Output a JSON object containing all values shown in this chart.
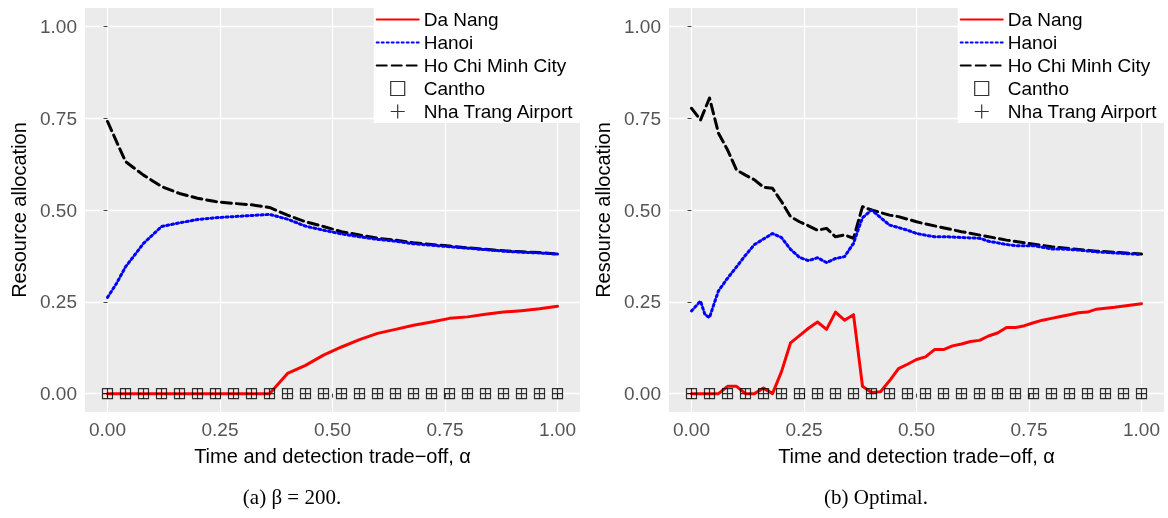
{
  "chart_data": [
    {
      "type": "line",
      "title": "(a) β = 200.",
      "xlabel": "Time and detection trade−off, α",
      "ylabel": "Resource allocation",
      "xlim": [
        -0.05,
        1.05
      ],
      "ylim": [
        -0.05,
        1.05
      ],
      "xticks": [
        {
          "value": 0,
          "label": "0.00"
        },
        {
          "value": 0.25,
          "label": "0.25"
        },
        {
          "value": 0.5,
          "label": "0.50"
        },
        {
          "value": 0.75,
          "label": "0.75"
        },
        {
          "value": 1,
          "label": "1.00"
        }
      ],
      "yticks": [
        {
          "value": 0,
          "label": "0.00"
        },
        {
          "value": 0.25,
          "label": "0.25"
        },
        {
          "value": 0.5,
          "label": "0.50"
        },
        {
          "value": 0.75,
          "label": "0.75"
        },
        {
          "value": 1,
          "label": "1.00"
        }
      ],
      "grid": true,
      "legend": "top right",
      "series": [
        {
          "name": "Da Nang",
          "type": "line",
          "line_style": "solid",
          "color": "#ff0000",
          "x": [
            0,
            0.04,
            0.08,
            0.12,
            0.16,
            0.2,
            0.24,
            0.28,
            0.32,
            0.36,
            0.4,
            0.44,
            0.48,
            0.52,
            0.56,
            0.6,
            0.64,
            0.68,
            0.72,
            0.76,
            0.8,
            0.84,
            0.88,
            0.92,
            0.96,
            1
          ],
          "values": [
            0,
            0,
            0,
            0,
            0,
            0,
            0,
            0,
            0,
            0,
            0.055,
            0.077,
            0.105,
            0.127,
            0.147,
            0.164,
            0.175,
            0.186,
            0.195,
            0.205,
            0.209,
            0.216,
            0.222,
            0.226,
            0.231,
            0.238
          ]
        },
        {
          "name": "Hanoi",
          "type": "line",
          "line_style": "dotted",
          "color": "#0000ff",
          "x": [
            0,
            0.02,
            0.04,
            0.08,
            0.12,
            0.16,
            0.2,
            0.24,
            0.28,
            0.32,
            0.36,
            0.4,
            0.44,
            0.48,
            0.52,
            0.56,
            0.6,
            0.64,
            0.68,
            0.72,
            0.76,
            0.8,
            0.84,
            0.88,
            0.92,
            0.96,
            1
          ],
          "values": [
            0.262,
            0.3,
            0.345,
            0.409,
            0.455,
            0.465,
            0.474,
            0.479,
            0.482,
            0.485,
            0.488,
            0.475,
            0.456,
            0.445,
            0.435,
            0.427,
            0.42,
            0.415,
            0.408,
            0.404,
            0.4,
            0.396,
            0.392,
            0.388,
            0.385,
            0.383,
            0.38
          ]
        },
        {
          "name": "Ho Chi Minh City",
          "type": "line",
          "line_style": "dashed",
          "color": "#000000",
          "x": [
            0,
            0.04,
            0.08,
            0.12,
            0.16,
            0.2,
            0.24,
            0.28,
            0.32,
            0.36,
            0.4,
            0.44,
            0.48,
            0.52,
            0.56,
            0.6,
            0.64,
            0.68,
            0.72,
            0.76,
            0.8,
            0.84,
            0.88,
            0.92,
            0.96,
            1
          ],
          "values": [
            0.741,
            0.632,
            0.595,
            0.564,
            0.545,
            0.532,
            0.523,
            0.518,
            0.514,
            0.507,
            0.486,
            0.468,
            0.455,
            0.441,
            0.432,
            0.423,
            0.418,
            0.411,
            0.406,
            0.402,
            0.397,
            0.393,
            0.389,
            0.386,
            0.384,
            0.38
          ]
        },
        {
          "name": "Cantho",
          "type": "scatter",
          "marker": "square",
          "color": "#000000",
          "x": [
            0,
            0.04,
            0.08,
            0.12,
            0.16,
            0.2,
            0.24,
            0.28,
            0.32,
            0.36,
            0.4,
            0.44,
            0.48,
            0.52,
            0.56,
            0.6,
            0.64,
            0.68,
            0.72,
            0.76,
            0.8,
            0.84,
            0.88,
            0.92,
            0.96,
            1
          ],
          "values": [
            0,
            0,
            0,
            0,
            0,
            0,
            0,
            0,
            0,
            0,
            0,
            0,
            0,
            0,
            0,
            0,
            0,
            0,
            0,
            0,
            0,
            0,
            0,
            0,
            0,
            0
          ]
        },
        {
          "name": "Nha Trang Airport",
          "type": "scatter",
          "marker": "cross",
          "color": "#000000",
          "x": [
            0,
            0.04,
            0.08,
            0.12,
            0.16,
            0.2,
            0.24,
            0.28,
            0.32,
            0.36,
            0.4,
            0.44,
            0.48,
            0.52,
            0.56,
            0.6,
            0.64,
            0.68,
            0.72,
            0.76,
            0.8,
            0.84,
            0.88,
            0.92,
            0.96,
            1
          ],
          "values": [
            0,
            0,
            0,
            0,
            0,
            0,
            0,
            0,
            0,
            0,
            0,
            0,
            0,
            0,
            0,
            0,
            0,
            0,
            0,
            0,
            0,
            0,
            0,
            0,
            0,
            0
          ]
        }
      ]
    },
    {
      "type": "line",
      "title": "(b) Optimal.",
      "xlabel": "Time and detection trade−off, α",
      "ylabel": "Resource allocation",
      "xlim": [
        -0.05,
        1.05
      ],
      "ylim": [
        -0.05,
        1.05
      ],
      "xticks": [
        {
          "value": 0,
          "label": "0.00"
        },
        {
          "value": 0.25,
          "label": "0.25"
        },
        {
          "value": 0.5,
          "label": "0.50"
        },
        {
          "value": 0.75,
          "label": "0.75"
        },
        {
          "value": 1,
          "label": "1.00"
        }
      ],
      "yticks": [
        {
          "value": 0,
          "label": "0.00"
        },
        {
          "value": 0.25,
          "label": "0.25"
        },
        {
          "value": 0.5,
          "label": "0.50"
        },
        {
          "value": 0.75,
          "label": "0.75"
        },
        {
          "value": 1,
          "label": "1.00"
        }
      ],
      "grid": true,
      "legend": "top right",
      "series": [
        {
          "name": "Da Nang",
          "type": "line",
          "line_style": "solid",
          "color": "#ff0000",
          "x": [
            0,
            0.02,
            0.04,
            0.06,
            0.08,
            0.1,
            0.12,
            0.14,
            0.16,
            0.18,
            0.2,
            0.22,
            0.24,
            0.26,
            0.28,
            0.3,
            0.32,
            0.34,
            0.36,
            0.38,
            0.4,
            0.42,
            0.44,
            0.46,
            0.48,
            0.5,
            0.52,
            0.54,
            0.56,
            0.58,
            0.6,
            0.62,
            0.64,
            0.66,
            0.68,
            0.7,
            0.72,
            0.74,
            0.76,
            0.78,
            0.8,
            0.82,
            0.84,
            0.86,
            0.88,
            0.9,
            0.94,
            1
          ],
          "values": [
            0,
            0,
            0,
            0,
            0.02,
            0.02,
            0,
            0,
            0.015,
            0,
            0.06,
            0.138,
            0.158,
            0.178,
            0.195,
            0.175,
            0.222,
            0.2,
            0.215,
            0.02,
            0.003,
            0.005,
            0.035,
            0.068,
            0.08,
            0.093,
            0.1,
            0.12,
            0.12,
            0.13,
            0.135,
            0.142,
            0.145,
            0.157,
            0.165,
            0.18,
            0.18,
            0.185,
            0.193,
            0.2,
            0.205,
            0.21,
            0.215,
            0.22,
            0.222,
            0.23,
            0.235,
            0.245
          ]
        },
        {
          "name": "Hanoi",
          "type": "line",
          "line_style": "dotted",
          "color": "#0000ff",
          "x": [
            0,
            0.02,
            0.03,
            0.04,
            0.05,
            0.06,
            0.08,
            0.1,
            0.12,
            0.14,
            0.16,
            0.18,
            0.2,
            0.22,
            0.24,
            0.26,
            0.28,
            0.3,
            0.32,
            0.34,
            0.36,
            0.37,
            0.38,
            0.4,
            0.44,
            0.48,
            0.5,
            0.54,
            0.57,
            0.6,
            0.64,
            0.66,
            0.7,
            0.72,
            0.76,
            0.8,
            0.82,
            0.86,
            0.9,
            0.94,
            1
          ],
          "values": [
            0.225,
            0.252,
            0.215,
            0.207,
            0.244,
            0.28,
            0.314,
            0.345,
            0.377,
            0.406,
            0.421,
            0.436,
            0.425,
            0.393,
            0.371,
            0.362,
            0.37,
            0.357,
            0.368,
            0.373,
            0.409,
            0.445,
            0.479,
            0.5,
            0.459,
            0.445,
            0.436,
            0.427,
            0.427,
            0.425,
            0.423,
            0.415,
            0.406,
            0.403,
            0.403,
            0.394,
            0.394,
            0.391,
            0.386,
            0.383,
            0.379
          ]
        },
        {
          "name": "Ho Chi Minh City",
          "type": "line",
          "line_style": "dashed",
          "color": "#000000",
          "x": [
            0,
            0.02,
            0.04,
            0.06,
            0.08,
            0.1,
            0.12,
            0.14,
            0.16,
            0.18,
            0.2,
            0.22,
            0.24,
            0.26,
            0.28,
            0.3,
            0.32,
            0.34,
            0.36,
            0.38,
            0.4,
            0.42,
            0.44,
            0.46,
            0.48,
            0.5,
            0.52,
            0.6,
            0.7,
            0.8,
            0.9,
            1
          ],
          "values": [
            0.777,
            0.745,
            0.805,
            0.709,
            0.664,
            0.609,
            0.595,
            0.582,
            0.562,
            0.559,
            0.523,
            0.482,
            0.468,
            0.457,
            0.445,
            0.45,
            0.427,
            0.432,
            0.423,
            0.509,
            0.5,
            0.493,
            0.486,
            0.482,
            0.475,
            0.468,
            0.462,
            0.441,
            0.418,
            0.4,
            0.388,
            0.38
          ]
        },
        {
          "name": "Cantho",
          "type": "scatter",
          "marker": "square",
          "color": "#000000",
          "x": [
            0,
            0.04,
            0.08,
            0.12,
            0.16,
            0.2,
            0.24,
            0.28,
            0.32,
            0.36,
            0.4,
            0.44,
            0.48,
            0.52,
            0.56,
            0.6,
            0.64,
            0.68,
            0.72,
            0.76,
            0.8,
            0.84,
            0.88,
            0.92,
            0.96,
            1
          ],
          "values": [
            0,
            0,
            0,
            0,
            0,
            0,
            0,
            0,
            0,
            0,
            0,
            0,
            0,
            0,
            0,
            0,
            0,
            0,
            0,
            0,
            0,
            0,
            0,
            0,
            0,
            0
          ]
        },
        {
          "name": "Nha Trang Airport",
          "type": "scatter",
          "marker": "cross",
          "color": "#000000",
          "x": [
            0,
            0.04,
            0.08,
            0.12,
            0.16,
            0.2,
            0.24,
            0.28,
            0.32,
            0.36,
            0.4,
            0.44,
            0.48,
            0.52,
            0.56,
            0.6,
            0.64,
            0.68,
            0.72,
            0.76,
            0.8,
            0.84,
            0.88,
            0.92,
            0.96,
            1
          ],
          "values": [
            0,
            0,
            0,
            0,
            0,
            0,
            0,
            0,
            0,
            0,
            0,
            0,
            0,
            0,
            0,
            0,
            0,
            0,
            0,
            0,
            0,
            0,
            0,
            0,
            0,
            0
          ]
        }
      ]
    }
  ]
}
